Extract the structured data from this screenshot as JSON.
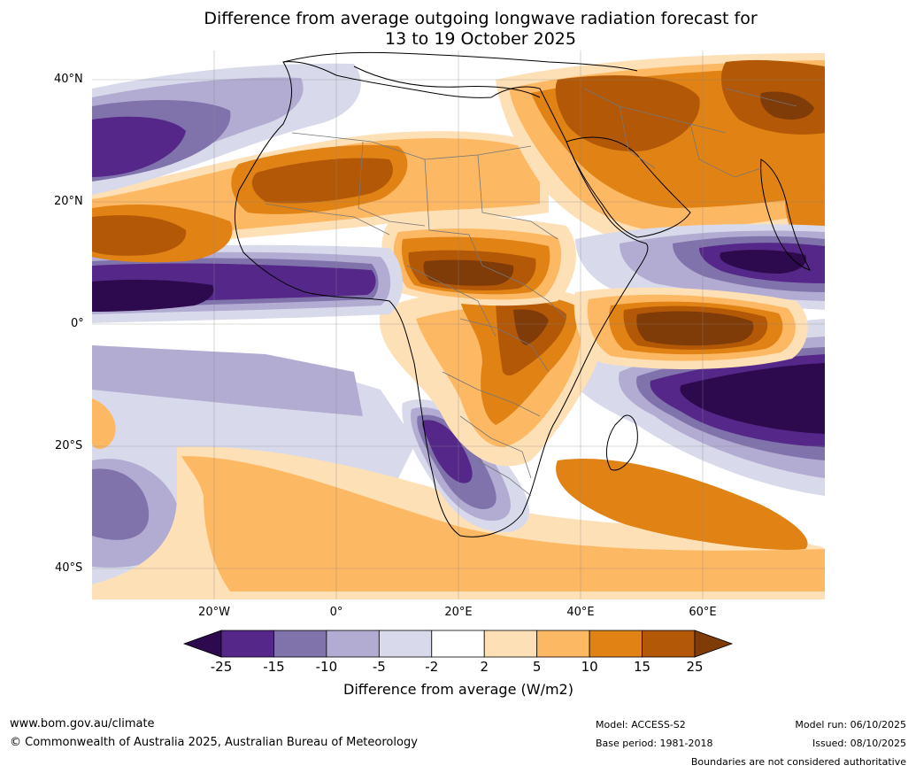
{
  "title": {
    "line1": "Difference from average outgoing longwave radiation forecast for",
    "line2": "13 to 19 October 2025"
  },
  "map": {
    "lat_labels": [
      "40°N",
      "20°N",
      "0°",
      "20°S",
      "40°S"
    ],
    "lon_labels": [
      "20°W",
      "0°",
      "20°E",
      "40°E",
      "60°E"
    ],
    "lon_range": [
      -40,
      80
    ],
    "lat_range": [
      -45,
      45
    ]
  },
  "colorbar": {
    "ticks": [
      "-25",
      "-15",
      "-10",
      "-5",
      "-2",
      "2",
      "5",
      "10",
      "15",
      "25"
    ],
    "colors": [
      "#2d0a4e",
      "#542788",
      "#8073ac",
      "#b2abd2",
      "#d8daeb",
      "#ffffff",
      "#fee0b6",
      "#fdb863",
      "#e08214",
      "#b35806",
      "#7f3b08"
    ],
    "label": "Difference from average (W/m2)"
  },
  "footer": {
    "website": "www.bom.gov.au/climate",
    "copyright": "© Commonwealth of Australia 2025, Australian Bureau of Meteorology",
    "model": "Model: ACCESS-S2",
    "base_period": "Base period: 1981-2018",
    "model_run": "Model run: 06/10/2025",
    "issued": "Issued: 08/10/2025",
    "disclaimer": "Boundaries are not considered authoritative"
  }
}
